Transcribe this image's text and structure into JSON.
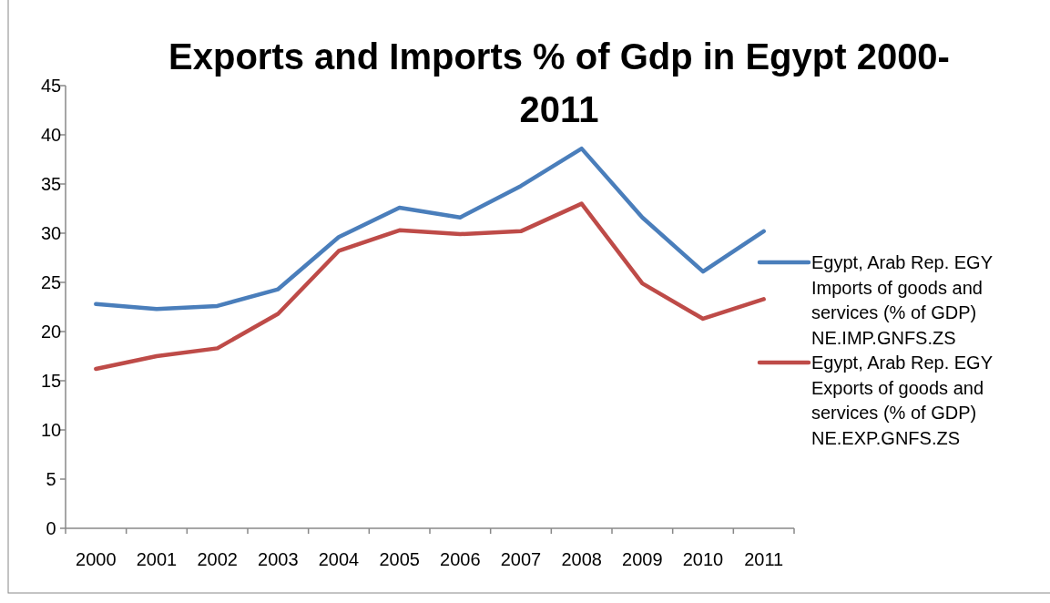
{
  "chart_data": {
    "type": "line",
    "title": "Exports and Imports % of Gdp in Egypt 2000-2011",
    "categories": [
      "2000",
      "2001",
      "2002",
      "2003",
      "2004",
      "2005",
      "2006",
      "2007",
      "2008",
      "2009",
      "2010",
      "2011"
    ],
    "series": [
      {
        "name": "Egypt, Arab Rep. EGY Imports of goods and services (% of GDP) NE.IMP.GNFS.ZS",
        "color": "#4a7ebb",
        "values": [
          22.8,
          22.3,
          22.6,
          24.3,
          29.6,
          32.6,
          31.6,
          34.8,
          38.6,
          31.6,
          26.1,
          30.2
        ]
      },
      {
        "name": "Egypt, Arab Rep. EGY Exports of goods and services (% of GDP) NE.EXP.GNFS.ZS",
        "color": "#be4b48",
        "values": [
          16.2,
          17.5,
          18.3,
          21.8,
          28.2,
          30.3,
          29.9,
          30.2,
          33.0,
          24.9,
          21.3,
          23.3
        ]
      }
    ],
    "ylim": [
      0,
      45
    ],
    "yticks": [
      0,
      5,
      10,
      15,
      20,
      25,
      30,
      35,
      40,
      45
    ],
    "grid": false,
    "legend": "right",
    "marker": "none",
    "line_style": "solid"
  }
}
